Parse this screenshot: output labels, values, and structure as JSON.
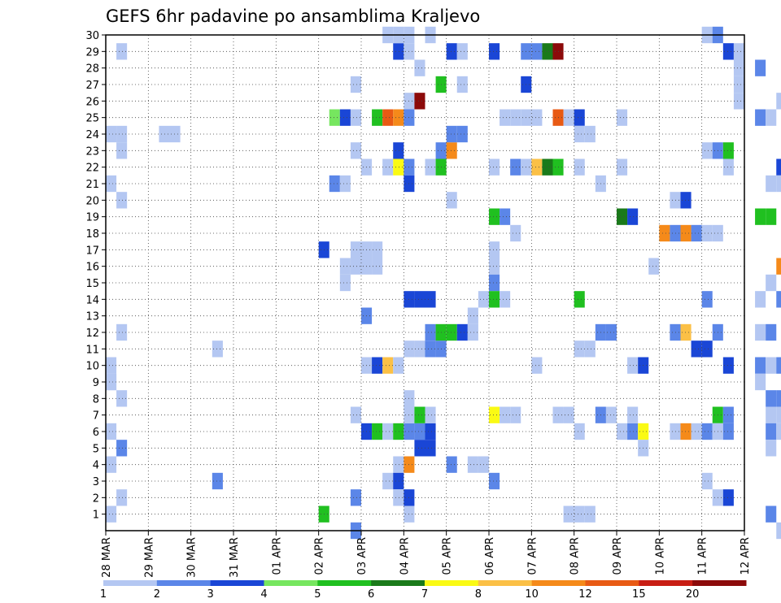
{
  "chart_data": {
    "type": "heatmap",
    "title": "GEFS 6hr padavine po ansamblima Kraljevo",
    "xlabel": "",
    "ylabel": "",
    "x_tick_labels": [
      "28 MAR",
      "29 MAR",
      "30 MAR",
      "31 MAR",
      "01 APR",
      "02 APR",
      "03 APR",
      "04 APR",
      "05 APR",
      "06 APR",
      "07 APR",
      "08 APR",
      "09 APR",
      "10 APR",
      "11 APR",
      "12 APR"
    ],
    "y_tick_labels": [
      "1",
      "2",
      "3",
      "4",
      "5",
      "6",
      "7",
      "8",
      "9",
      "10",
      "11",
      "12",
      "13",
      "14",
      "15",
      "16",
      "17",
      "18",
      "19",
      "20",
      "21",
      "22",
      "23",
      "24",
      "25",
      "26",
      "27",
      "28",
      "29",
      "30"
    ],
    "ylim": [
      0,
      30
    ],
    "steps_per_day": 4,
    "grid": "dotted",
    "colorbar": {
      "labels": [
        "1",
        "2",
        "3",
        "4",
        "5",
        "6",
        "7",
        "8",
        "10",
        "12",
        "15",
        "20"
      ],
      "colors": [
        "#b4c7f2",
        "#5b86e8",
        "#1a46d6",
        "#76e65f",
        "#20c020",
        "#1a7a1a",
        "#fafa14",
        "#fbc046",
        "#f58a1a",
        "#e85a14",
        "#c81e14",
        "#8c0a0a"
      ]
    },
    "cells": [
      [
        0,
        1,
        1
      ],
      [
        0,
        9,
        1
      ],
      [
        0,
        10,
        1
      ],
      [
        0,
        9,
        1
      ],
      [
        0,
        6,
        1
      ],
      [
        0,
        4,
        1
      ],
      [
        0,
        21,
        1
      ],
      [
        0,
        24,
        1
      ],
      [
        1,
        2,
        1
      ],
      [
        1,
        5,
        2
      ],
      [
        1,
        8,
        1
      ],
      [
        1,
        12,
        1
      ],
      [
        1,
        20,
        1
      ],
      [
        1,
        23,
        1
      ],
      [
        1,
        24,
        1
      ],
      [
        1,
        29,
        1
      ],
      [
        5,
        24,
        1
      ],
      [
        6,
        24,
        1
      ],
      [
        10,
        3,
        2
      ],
      [
        10,
        11,
        1
      ],
      [
        20,
        1,
        5
      ],
      [
        20,
        17,
        3
      ],
      [
        21,
        25,
        4
      ],
      [
        21,
        21,
        2
      ],
      [
        22,
        25,
        3
      ],
      [
        22,
        21,
        1
      ],
      [
        22,
        15,
        1
      ],
      [
        22,
        16,
        1
      ],
      [
        23,
        16,
        1
      ],
      [
        23,
        17,
        1
      ],
      [
        23,
        25,
        1
      ],
      [
        23,
        27,
        1
      ],
      [
        23,
        23,
        1
      ],
      [
        23,
        7,
        1
      ],
      [
        23,
        2,
        2
      ],
      [
        23,
        0,
        2
      ],
      [
        24,
        16,
        1
      ],
      [
        24,
        17,
        1
      ],
      [
        24,
        22,
        1
      ],
      [
        24,
        6,
        3
      ],
      [
        24,
        10,
        1
      ],
      [
        24,
        13,
        2
      ],
      [
        25,
        16,
        1
      ],
      [
        25,
        17,
        1
      ],
      [
        25,
        25,
        5
      ],
      [
        25,
        6,
        5
      ],
      [
        25,
        10,
        3
      ],
      [
        26,
        25,
        12
      ],
      [
        26,
        6,
        1
      ],
      [
        26,
        10,
        8
      ],
      [
        26,
        3,
        1
      ],
      [
        26,
        22,
        1
      ],
      [
        26,
        30,
        1
      ],
      [
        27,
        25,
        10
      ],
      [
        27,
        22,
        7
      ],
      [
        27,
        6,
        5
      ],
      [
        27,
        4,
        1
      ],
      [
        27,
        10,
        1
      ],
      [
        27,
        3,
        3
      ],
      [
        27,
        2,
        1
      ],
      [
        27,
        29,
        3
      ],
      [
        27,
        23,
        3
      ],
      [
        27,
        30,
        1
      ],
      [
        28,
        25,
        2
      ],
      [
        28,
        22,
        2
      ],
      [
        28,
        21,
        3
      ],
      [
        28,
        6,
        2
      ],
      [
        28,
        2,
        3
      ],
      [
        28,
        1,
        1
      ],
      [
        28,
        14,
        3
      ],
      [
        28,
        8,
        1
      ],
      [
        28,
        4,
        10
      ],
      [
        28,
        7,
        1
      ],
      [
        28,
        26,
        1
      ],
      [
        28,
        11,
        1
      ],
      [
        28,
        29,
        1
      ],
      [
        28,
        30,
        1
      ],
      [
        29,
        26,
        20
      ],
      [
        29,
        28,
        1
      ],
      [
        29,
        6,
        2
      ],
      [
        29,
        5,
        3
      ],
      [
        29,
        14,
        3
      ],
      [
        29,
        11,
        1
      ],
      [
        29,
        7,
        5
      ],
      [
        30,
        22,
        1
      ],
      [
        30,
        14,
        3
      ],
      [
        30,
        5,
        3
      ],
      [
        30,
        6,
        3
      ],
      [
        30,
        11,
        2
      ],
      [
        30,
        12,
        2
      ],
      [
        30,
        30,
        1
      ],
      [
        30,
        7,
        1
      ],
      [
        31,
        27,
        5
      ],
      [
        31,
        22,
        5
      ],
      [
        31,
        23,
        2
      ],
      [
        31,
        11,
        2
      ],
      [
        31,
        12,
        5
      ],
      [
        32,
        23,
        10
      ],
      [
        32,
        24,
        2
      ],
      [
        32,
        12,
        5
      ],
      [
        32,
        4,
        2
      ],
      [
        32,
        20,
        1
      ],
      [
        32,
        29,
        3
      ],
      [
        33,
        24,
        2
      ],
      [
        33,
        29,
        1
      ],
      [
        33,
        27,
        1
      ],
      [
        33,
        12,
        3
      ],
      [
        34,
        13,
        1
      ],
      [
        34,
        12,
        1
      ],
      [
        34,
        4,
        1
      ],
      [
        35,
        14,
        1
      ],
      [
        35,
        4,
        1
      ],
      [
        36,
        19,
        5
      ],
      [
        36,
        17,
        1
      ],
      [
        36,
        16,
        1
      ],
      [
        36,
        15,
        2
      ],
      [
        36,
        14,
        5
      ],
      [
        36,
        7,
        7
      ],
      [
        36,
        3,
        2
      ],
      [
        36,
        22,
        1
      ],
      [
        36,
        29,
        3
      ],
      [
        37,
        19,
        2
      ],
      [
        37,
        14,
        1
      ],
      [
        37,
        7,
        1
      ],
      [
        37,
        25,
        1
      ],
      [
        38,
        18,
        1
      ],
      [
        38,
        22,
        2
      ],
      [
        38,
        25,
        1
      ],
      [
        38,
        7,
        1
      ],
      [
        39,
        29,
        2
      ],
      [
        39,
        27,
        3
      ],
      [
        39,
        22,
        1
      ],
      [
        39,
        25,
        1
      ],
      [
        40,
        29,
        2
      ],
      [
        40,
        22,
        8
      ],
      [
        40,
        10,
        1
      ],
      [
        40,
        25,
        1
      ],
      [
        41,
        29,
        6
      ],
      [
        41,
        22,
        6
      ],
      [
        42,
        29,
        20
      ],
      [
        42,
        22,
        5
      ],
      [
        42,
        25,
        12
      ],
      [
        42,
        7,
        1
      ],
      [
        43,
        25,
        1
      ],
      [
        43,
        7,
        1
      ],
      [
        43,
        1,
        1
      ],
      [
        44,
        14,
        5
      ],
      [
        44,
        25,
        3
      ],
      [
        44,
        24,
        1
      ],
      [
        44,
        22,
        1
      ],
      [
        44,
        11,
        1
      ],
      [
        44,
        6,
        1
      ],
      [
        44,
        1,
        1
      ],
      [
        45,
        24,
        1
      ],
      [
        45,
        11,
        1
      ],
      [
        45,
        1,
        1
      ],
      [
        46,
        21,
        1
      ],
      [
        46,
        12,
        2
      ],
      [
        46,
        7,
        2
      ],
      [
        47,
        12,
        2
      ],
      [
        47,
        7,
        1
      ],
      [
        48,
        25,
        1
      ],
      [
        48,
        22,
        1
      ],
      [
        48,
        19,
        6
      ],
      [
        48,
        6,
        1
      ],
      [
        49,
        19,
        3
      ],
      [
        49,
        10,
        1
      ],
      [
        49,
        6,
        2
      ],
      [
        49,
        7,
        1
      ],
      [
        50,
        10,
        3
      ],
      [
        50,
        6,
        7
      ],
      [
        50,
        5,
        1
      ],
      [
        51,
        16,
        1
      ],
      [
        52,
        18,
        10
      ],
      [
        53,
        18,
        2
      ],
      [
        53,
        20,
        1
      ],
      [
        53,
        12,
        2
      ],
      [
        53,
        6,
        1
      ],
      [
        54,
        18,
        10
      ],
      [
        54,
        12,
        8
      ],
      [
        54,
        20,
        3
      ],
      [
        54,
        6,
        10
      ],
      [
        55,
        18,
        2
      ],
      [
        55,
        11,
        3
      ],
      [
        55,
        6,
        1
      ],
      [
        56,
        18,
        1
      ],
      [
        56,
        11,
        3
      ],
      [
        56,
        30,
        1
      ],
      [
        56,
        23,
        1
      ],
      [
        56,
        14,
        2
      ],
      [
        56,
        3,
        1
      ],
      [
        56,
        6,
        2
      ],
      [
        57,
        30,
        2
      ],
      [
        57,
        23,
        2
      ],
      [
        57,
        18,
        1
      ],
      [
        57,
        12,
        2
      ],
      [
        57,
        7,
        5
      ],
      [
        57,
        6,
        1
      ],
      [
        57,
        2,
        1
      ],
      [
        58,
        29,
        3
      ],
      [
        58,
        22,
        1
      ],
      [
        58,
        23,
        5
      ],
      [
        58,
        10,
        3
      ],
      [
        58,
        7,
        2
      ],
      [
        58,
        6,
        2
      ],
      [
        58,
        2,
        3
      ],
      [
        59,
        28,
        1
      ],
      [
        59,
        27,
        1
      ],
      [
        59,
        26,
        1
      ],
      [
        59,
        29,
        1
      ],
      [
        61,
        28,
        2
      ],
      [
        61,
        25,
        2
      ],
      [
        61,
        19,
        5
      ],
      [
        61,
        14,
        1
      ],
      [
        61,
        12,
        1
      ],
      [
        61,
        10,
        2
      ],
      [
        61,
        9,
        1
      ],
      [
        62,
        25,
        1
      ],
      [
        62,
        19,
        5
      ],
      [
        62,
        12,
        2
      ],
      [
        62,
        10,
        1
      ],
      [
        62,
        8,
        2
      ],
      [
        62,
        7,
        1
      ],
      [
        62,
        6,
        2
      ],
      [
        62,
        5,
        1
      ],
      [
        62,
        15,
        1
      ],
      [
        62,
        1,
        2
      ],
      [
        62,
        21,
        1
      ],
      [
        63,
        26,
        1
      ],
      [
        63,
        22,
        3
      ],
      [
        63,
        21,
        1
      ],
      [
        63,
        16,
        10
      ],
      [
        63,
        14,
        2
      ],
      [
        63,
        10,
        2
      ],
      [
        63,
        8,
        2
      ],
      [
        63,
        7,
        1
      ],
      [
        63,
        6,
        1
      ],
      [
        63,
        0,
        1
      ]
    ]
  }
}
